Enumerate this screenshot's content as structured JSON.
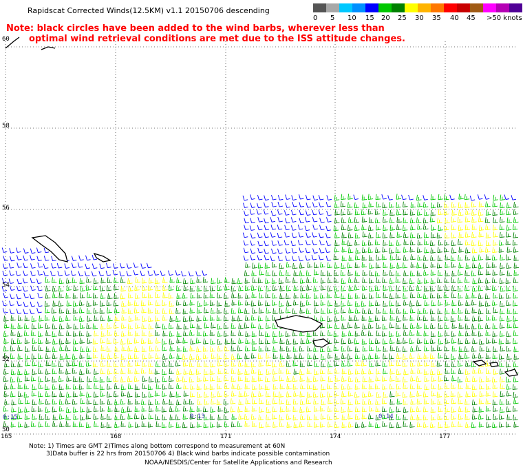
{
  "title": "Rapidscat Corrected Winds(12.5KM) v1.1 20150706 descending",
  "note_line1": "Note: black circles have been added to the wind barbs, wherever less than",
  "note_line2": "optimal wind retrieval conditions are met due to the ISS attitude changes.",
  "legend": {
    "colors": [
      "#555555",
      "#a8a8a8",
      "#00c8ff",
      "#0090ff",
      "#0000ff",
      "#00c800",
      "#008000",
      "#ffff00",
      "#ffb400",
      "#ff7800",
      "#ff0000",
      "#c80000",
      "#a05a14",
      "#ff00ff",
      "#b400b4",
      "#500096"
    ],
    "labels": [
      "0",
      "5",
      "10",
      "15",
      "20",
      "25",
      "30",
      "35",
      "40",
      "45",
      ">50 knots"
    ]
  },
  "lat_labels": [
    "60",
    "58",
    "56",
    "54",
    "52",
    "50"
  ],
  "lon_labels": [
    "165",
    "168",
    "171",
    "174",
    "177"
  ],
  "time_labels": [
    "0:15",
    "0:13",
    "0:14"
  ],
  "footnotes": {
    "line1": "Note: 1) Times are GMT 2)Times along bottom correspond to measurement at 60N",
    "line2": "3)Data buffer is 22 hrs from 20150706 4) Black wind barbs indicate possible contamination",
    "line3": "NOAA/NESDIS/Center for Satellite Applications and Research"
  }
}
